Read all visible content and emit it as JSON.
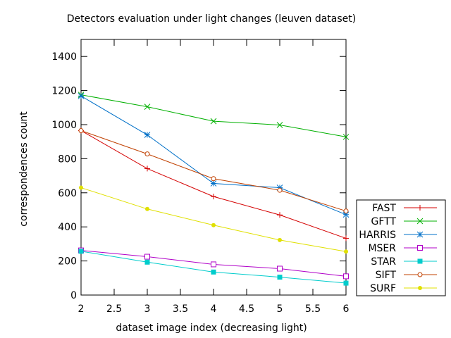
{
  "chart_data": {
    "type": "line",
    "title": "Detectors evaluation under light changes (leuven dataset)",
    "xlabel": "dataset image index (decreasing light)",
    "ylabel": "correspondences count",
    "xlim": [
      2,
      6
    ],
    "ylim": [
      0,
      1500
    ],
    "xticks": [
      "2",
      "2.5",
      "3",
      "3.5",
      "4",
      "4.5",
      "5",
      "5.5",
      "6"
    ],
    "yticks": [
      "0",
      "200",
      "400",
      "600",
      "800",
      "1000",
      "1200",
      "1400"
    ],
    "grid": false,
    "legend_position": "bottom-right, outside plot",
    "x": [
      2,
      3,
      4,
      5,
      6
    ],
    "series": [
      {
        "name": "FAST",
        "color": "#d40000",
        "marker": "plus",
        "values": [
          965,
          742,
          578,
          470,
          333
        ]
      },
      {
        "name": "GFTT",
        "color": "#00b000",
        "marker": "cross",
        "values": [
          1175,
          1105,
          1020,
          998,
          928
        ]
      },
      {
        "name": "HARRIS",
        "color": "#0070c8",
        "marker": "star",
        "values": [
          1168,
          940,
          655,
          630,
          472
        ]
      },
      {
        "name": "MSER",
        "color": "#b000c8",
        "marker": "square-open",
        "values": [
          262,
          225,
          180,
          155,
          110
        ]
      },
      {
        "name": "STAR",
        "color": "#00cccc",
        "marker": "square-filled",
        "values": [
          257,
          193,
          135,
          105,
          70
        ]
      },
      {
        "name": "SIFT",
        "color": "#c04000",
        "marker": "circle-open",
        "values": [
          965,
          828,
          683,
          615,
          493
        ]
      },
      {
        "name": "SURF",
        "color": "#e0e000",
        "marker": "circle-filled",
        "values": [
          630,
          505,
          410,
          323,
          255
        ]
      }
    ]
  }
}
